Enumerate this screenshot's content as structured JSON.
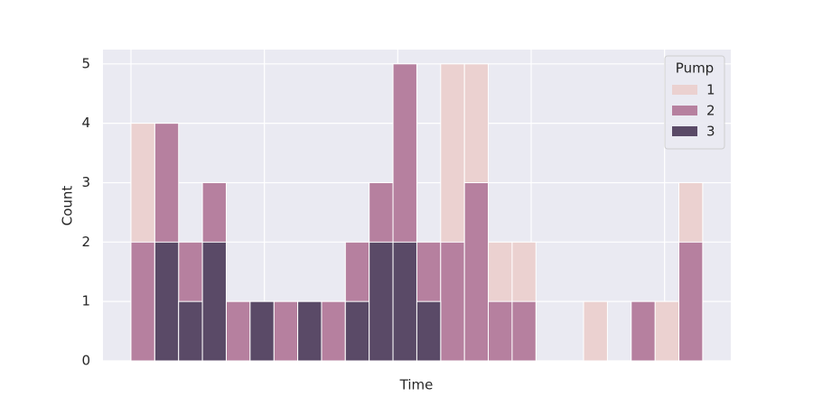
{
  "chart_data": {
    "type": "histogram",
    "x_label": "Time",
    "y_label": "Count",
    "legend_title": "Pump",
    "legend_position": "upper right",
    "bins": [
      0,
      1,
      2,
      3,
      4,
      5,
      6,
      7,
      8,
      9,
      10,
      11,
      12,
      13,
      14,
      15,
      16,
      17,
      18,
      19,
      20,
      21,
      22,
      23,
      24
    ],
    "series": [
      {
        "name": "1",
        "color": "#ebd1d0",
        "values": [
          4,
          0,
          0,
          0,
          0,
          0,
          0,
          0,
          0,
          0,
          0,
          0,
          0,
          5,
          5,
          2,
          2,
          0,
          0,
          1,
          0,
          0,
          1,
          3
        ]
      },
      {
        "name": "2",
        "color": "#b6809f",
        "values": [
          2,
          4,
          2,
          3,
          1,
          0,
          1,
          0,
          1,
          2,
          3,
          5,
          2,
          2,
          3,
          1,
          1,
          0,
          0,
          0,
          0,
          1,
          0,
          2
        ]
      },
      {
        "name": "3",
        "color": "#5a4a67",
        "values": [
          0,
          2,
          1,
          2,
          0,
          1,
          0,
          1,
          0,
          1,
          2,
          2,
          1,
          0,
          0,
          0,
          0,
          0,
          0,
          0,
          0,
          0,
          0,
          0
        ]
      }
    ],
    "xlim": [
      -1.175,
      25.18
    ],
    "xticks": [
      0,
      5.6,
      11.2,
      16.8,
      22.4
    ],
    "ylim": [
      0,
      5.24
    ],
    "yticks": [
      0,
      1,
      2,
      3,
      4,
      5
    ],
    "grid": true
  }
}
